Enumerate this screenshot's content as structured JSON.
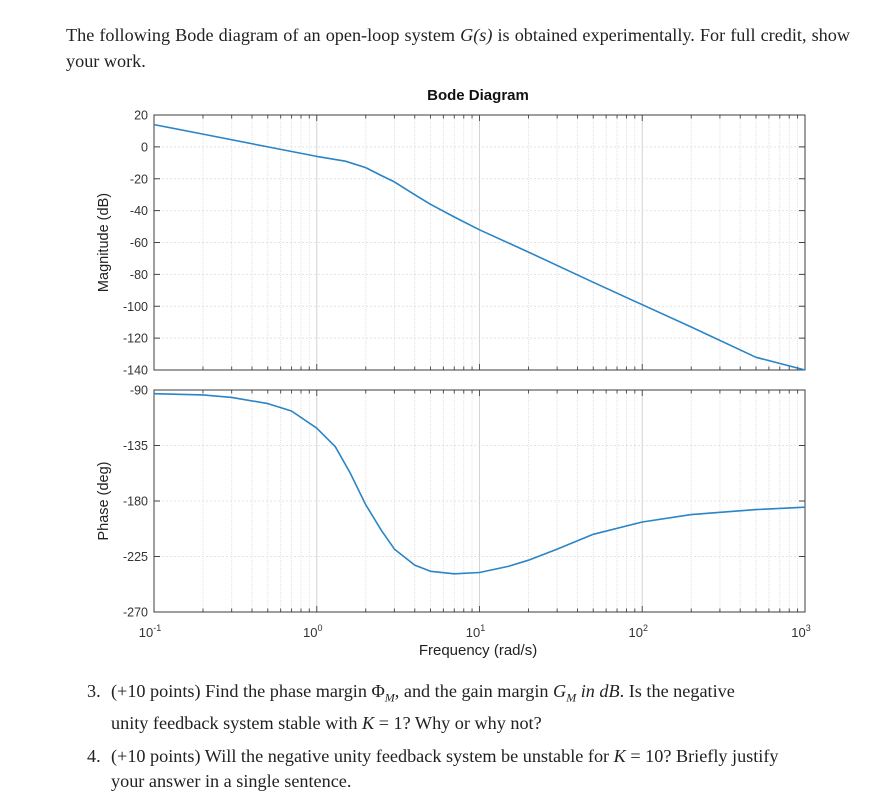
{
  "problem": {
    "intro_part1": "The following Bode diagram of an open-loop system ",
    "intro_sym": "G(s)",
    "intro_part2": " is obtained experimentally.  For full credit, show your work."
  },
  "chart_data": {
    "type": "line",
    "title": "Bode Diagram",
    "xlabel": "Frequency (rad/s)",
    "x_scale": "log",
    "xlim": [
      0.1,
      1000
    ],
    "x_ticks": [
      0.1,
      1,
      10,
      100,
      1000
    ],
    "x_tick_labels": [
      {
        "base": "10",
        "exp": "-1"
      },
      {
        "base": "10",
        "exp": "0"
      },
      {
        "base": "10",
        "exp": "1"
      },
      {
        "base": "10",
        "exp": "2"
      },
      {
        "base": "10",
        "exp": "3"
      }
    ],
    "grid": true,
    "line_color": "#2a84c6",
    "magnitude": {
      "ylabel": "Magnitude (dB)",
      "ylim": [
        -140,
        20
      ],
      "y_ticks": [
        20,
        0,
        -20,
        -40,
        -60,
        -80,
        -100,
        -120,
        -140
      ],
      "x": [
        0.1,
        0.2,
        0.5,
        1,
        1.5,
        2,
        2.5,
        3,
        4,
        5,
        7,
        10,
        20,
        50,
        100,
        200,
        500,
        1000
      ],
      "y": [
        14,
        8,
        0,
        -6,
        -9,
        -13,
        -18,
        -22,
        -30,
        -36,
        -44,
        -52,
        -66,
        -85,
        -99,
        -113,
        -132,
        -140
      ]
    },
    "phase": {
      "ylabel": "Phase (deg)",
      "ylim": [
        -270,
        -90
      ],
      "y_ticks": [
        -90,
        -135,
        -180,
        -225,
        -270
      ],
      "x": [
        0.1,
        0.2,
        0.3,
        0.5,
        0.7,
        1,
        1.3,
        1.6,
        2,
        2.5,
        3,
        4,
        5,
        7,
        10,
        15,
        20,
        30,
        50,
        100,
        200,
        500,
        1000
      ],
      "y": [
        -93,
        -94,
        -96,
        -101,
        -107,
        -121,
        -136,
        -157,
        -183,
        -204,
        -219,
        -232,
        -237,
        -239,
        -238,
        -233,
        -228,
        -219,
        -207,
        -197,
        -191,
        -187,
        -185
      ]
    }
  },
  "questions": [
    {
      "number": "3.",
      "line1_a": "(+10 points) Find the phase margin ",
      "line1_sym1": "Φ",
      "line1_sub1": "M",
      "line1_b": ", and the gain margin ",
      "line1_sym2": "G",
      "line1_sub2": "M",
      "line1_c": " in dB",
      "line1_d": ". Is the negative",
      "line2_a": "unity feedback system stable with ",
      "line2_sym": "K",
      "line2_b": " = 1? Why or why not?"
    },
    {
      "number": "4.",
      "line1_a": "(+10 points) Will the negative unity feedback system be unstable for ",
      "line1_sym": "K",
      "line1_b": " = 10? Briefly justify",
      "line2": "your answer in a single sentence."
    }
  ]
}
